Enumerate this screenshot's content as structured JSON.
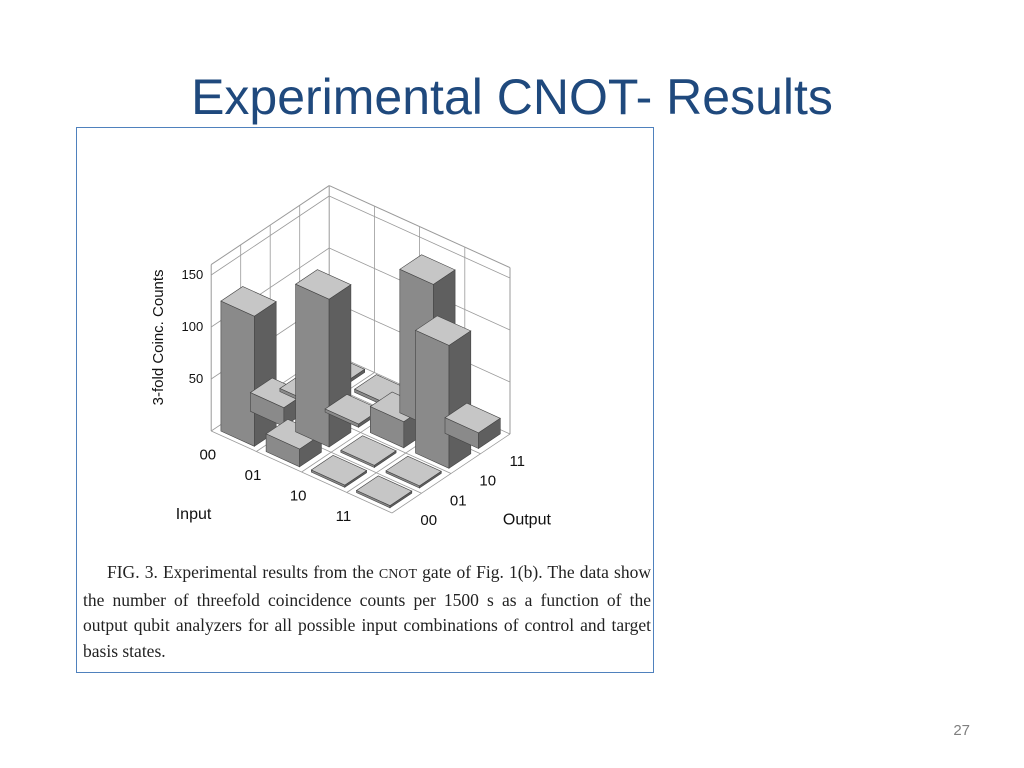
{
  "slide": {
    "title": "Experimental CNOT- Results",
    "page_number": "27"
  },
  "figure": {
    "caption_parts": [
      "FIG. 3. Experimental results from the ",
      "CNOT",
      " gate of Fig. 1(b). The data show the number of threefold coincidence counts per 1500 s as a function of the output qubit analyzers for all possible input combinations of control and target basis states."
    ]
  },
  "chart_data": {
    "type": "bar",
    "style": "3d-bar",
    "zlabel": "3-fold Coinc. Counts",
    "xlabel": "Input",
    "ylabel": "Output",
    "input_ticks": [
      "00",
      "01",
      "10",
      "11"
    ],
    "output_ticks": [
      "00",
      "01",
      "10",
      "11"
    ],
    "z_ticks": [
      "50",
      "100",
      "150"
    ],
    "zlim": [
      0,
      150
    ],
    "values": [
      {
        "input": "00",
        "output": "00",
        "value": 125
      },
      {
        "input": "00",
        "output": "01",
        "value": 18
      },
      {
        "input": "00",
        "output": "10",
        "value": 3
      },
      {
        "input": "00",
        "output": "11",
        "value": 3
      },
      {
        "input": "01",
        "output": "00",
        "value": 17
      },
      {
        "input": "01",
        "output": "01",
        "value": 142
      },
      {
        "input": "01",
        "output": "10",
        "value": 3
      },
      {
        "input": "01",
        "output": "11",
        "value": 3
      },
      {
        "input": "10",
        "output": "00",
        "value": 2
      },
      {
        "input": "10",
        "output": "01",
        "value": 2
      },
      {
        "input": "10",
        "output": "10",
        "value": 25
      },
      {
        "input": "10",
        "output": "11",
        "value": 138
      },
      {
        "input": "11",
        "output": "00",
        "value": 2
      },
      {
        "input": "11",
        "output": "01",
        "value": 2
      },
      {
        "input": "11",
        "output": "10",
        "value": 118
      },
      {
        "input": "11",
        "output": "11",
        "value": 15
      }
    ],
    "grid": true
  },
  "colors": {
    "title": "#1f497d",
    "border": "#4f81bd",
    "bar_top": "#c6c6c6",
    "bar_left": "#8a8a8a",
    "bar_right": "#5f5f5f",
    "grid": "#9a9a9a"
  }
}
